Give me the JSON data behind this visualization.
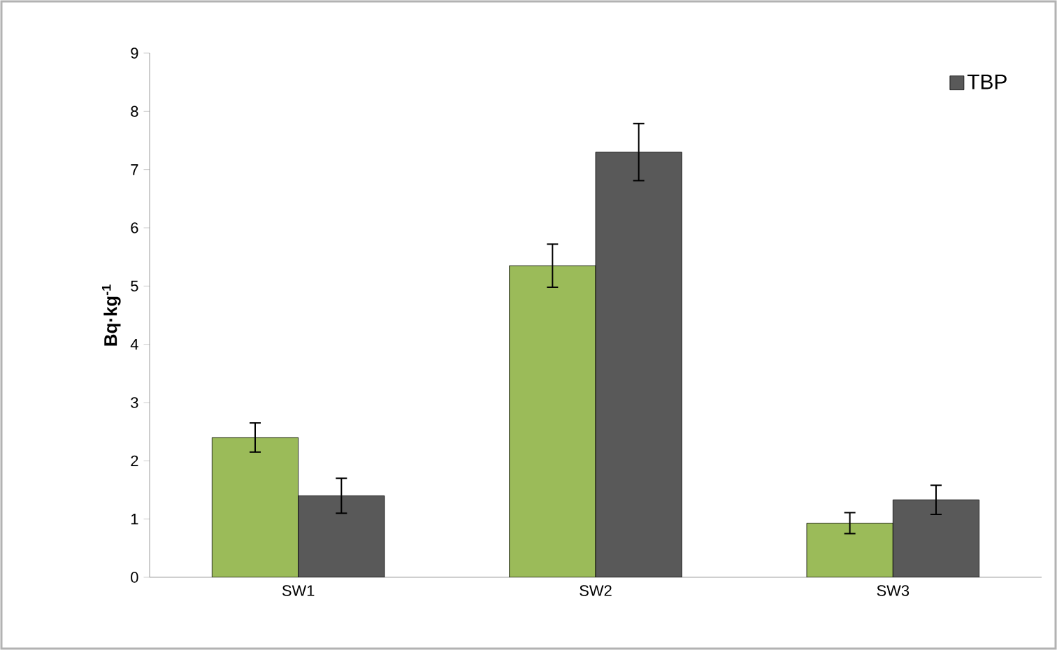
{
  "chart_data": {
    "type": "bar",
    "ylabel": "**Bq·kg$^{-1}$**",
    "categories": [
      "SW1",
      "SW2",
      "SW3"
    ],
    "series": [
      {
        "color": "#9bbb59",
        "values": [
          2.4,
          5.35,
          0.93
        ],
        "errors": [
          0.25,
          0.37,
          0.18
        ]
      },
      {
        "name": "TBP",
        "color": "#595959",
        "values": [
          1.4,
          7.3,
          1.33
        ],
        "errors": [
          0.3,
          0.49,
          0.25
        ]
      }
    ],
    "ylim": [
      0,
      9
    ],
    "yticks": [
      0,
      1,
      2,
      3,
      4,
      5,
      6,
      7,
      8,
      9
    ],
    "grid": false,
    "legend": "top right"
  }
}
